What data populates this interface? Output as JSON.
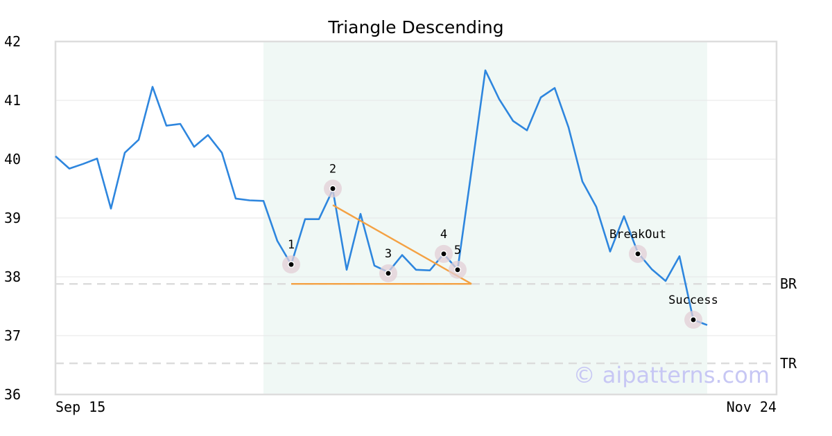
{
  "chart_data": {
    "type": "line",
    "title": "Triangle Descending",
    "xlabel": "",
    "ylabel": "",
    "ylim": [
      36,
      42
    ],
    "y_ticks": [
      "36",
      "37",
      "38",
      "39",
      "40",
      "41",
      "42"
    ],
    "x_tick_labels": [
      "Sep 15",
      "Nov 24"
    ],
    "x_range": [
      0,
      52
    ],
    "grid": "horizontal",
    "series": [
      {
        "color": "#2e86de",
        "values": [
          40.05,
          39.84,
          39.92,
          40.01,
          39.16,
          40.11,
          40.33,
          41.23,
          40.57,
          40.6,
          40.21,
          40.41,
          40.11,
          39.33,
          39.3,
          39.29,
          38.61,
          38.21,
          38.98,
          38.98,
          39.48,
          38.12,
          39.07,
          38.19,
          38.08,
          38.37,
          38.12,
          38.11,
          38.39,
          38.12,
          39.8,
          41.51,
          41.02,
          40.65,
          40.49,
          41.05,
          41.21,
          40.54,
          39.62,
          39.19,
          38.43,
          39.03,
          38.41,
          38.13,
          37.93,
          38.35,
          37.27,
          37.18
        ]
      }
    ],
    "shaded_region": {
      "x_start": 15,
      "x_end": 47,
      "color": "#f0f8f5"
    },
    "horizontal_lines": [
      {
        "label": "BR",
        "y": 37.88
      },
      {
        "label": "TR",
        "y": 36.53
      }
    ],
    "trendlines": [
      {
        "x": [
          20,
          30
        ],
        "y": [
          39.22,
          37.88
        ],
        "color": "#f4a143"
      },
      {
        "x": [
          17,
          30
        ],
        "y": [
          37.88,
          37.88
        ],
        "color": "#f4a143"
      }
    ],
    "markers": [
      {
        "label": "1",
        "x": 17,
        "y": 38.21
      },
      {
        "label": "2",
        "x": 20,
        "y": 39.5
      },
      {
        "label": "3",
        "x": 24,
        "y": 38.06
      },
      {
        "label": "4",
        "x": 28,
        "y": 38.39
      },
      {
        "label": "5",
        "x": 29,
        "y": 38.12
      },
      {
        "label": "BreakOut",
        "x": 42,
        "y": 38.39
      },
      {
        "label": "Success",
        "x": 46,
        "y": 37.27
      }
    ],
    "watermark": "© aipatterns.com"
  }
}
